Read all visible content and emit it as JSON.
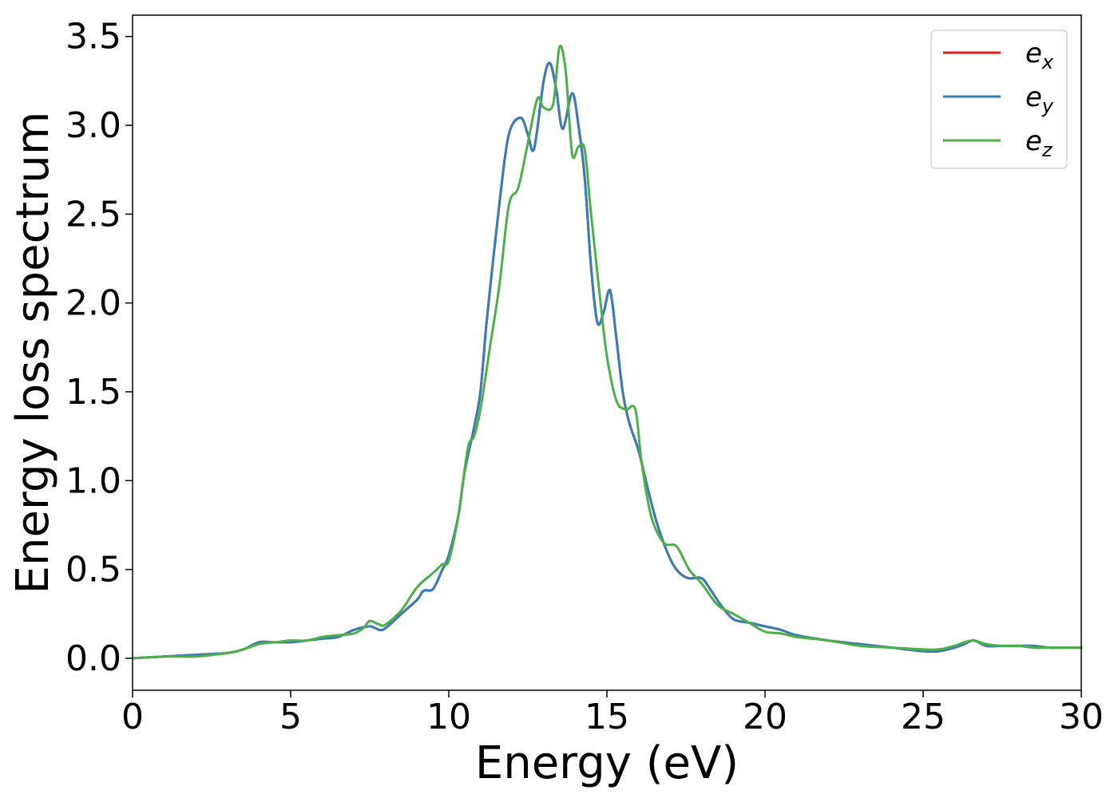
{
  "chart_data": {
    "type": "line",
    "xlabel": "Energy (eV)",
    "ylabel": "Energy loss spectrum",
    "xlim": [
      0,
      30
    ],
    "ylim": [
      -0.18,
      3.62
    ],
    "xticks": [
      "0",
      "5",
      "10",
      "15",
      "20",
      "25",
      "30"
    ],
    "yticks": [
      "0.0",
      "0.5",
      "1.0",
      "1.5",
      "2.0",
      "2.5",
      "3.0",
      "3.5"
    ],
    "grid": false,
    "legend_position": "top-right",
    "series": [
      {
        "base": "e",
        "sub": "x",
        "color": "#e41a1c",
        "x": [
          0,
          1,
          2,
          3,
          3.5,
          4,
          4.5,
          5,
          5.5,
          6,
          6.5,
          7,
          7.5,
          7.8,
          8,
          8.5,
          9,
          9.2,
          9.5,
          9.8,
          10,
          10.3,
          10.5,
          10.8,
          11,
          11.2,
          11.5,
          11.8,
          12,
          12.3,
          12.5,
          12.7,
          13,
          13.2,
          13.4,
          13.6,
          13.9,
          14.1,
          14.3,
          14.5,
          14.7,
          14.9,
          15.1,
          15.3,
          15.5,
          15.7,
          16,
          16.3,
          16.6,
          17,
          17.3,
          17.6,
          18,
          18.3,
          18.6,
          19,
          19.5,
          20,
          20.5,
          21,
          22,
          23,
          24,
          25,
          25.5,
          26,
          26.3,
          26.6,
          27,
          27.5,
          28,
          28.5,
          29,
          29.5,
          30
        ],
        "y": [
          0,
          0.01,
          0.02,
          0.03,
          0.05,
          0.09,
          0.09,
          0.09,
          0.1,
          0.11,
          0.12,
          0.16,
          0.18,
          0.16,
          0.17,
          0.25,
          0.33,
          0.38,
          0.39,
          0.5,
          0.58,
          0.8,
          1.05,
          1.3,
          1.5,
          1.9,
          2.4,
          2.85,
          3.0,
          3.04,
          2.95,
          2.87,
          3.25,
          3.35,
          3.2,
          2.98,
          3.18,
          3.0,
          2.7,
          2.2,
          1.89,
          1.95,
          2.07,
          1.8,
          1.5,
          1.33,
          1.17,
          0.95,
          0.75,
          0.56,
          0.48,
          0.45,
          0.45,
          0.38,
          0.3,
          0.22,
          0.2,
          0.18,
          0.16,
          0.13,
          0.1,
          0.08,
          0.06,
          0.04,
          0.04,
          0.06,
          0.08,
          0.1,
          0.07,
          0.07,
          0.07,
          0.07,
          0.06,
          0.06,
          0.06
        ]
      },
      {
        "base": "e",
        "sub": "y",
        "color": "#377eb8",
        "x": [
          0,
          1,
          2,
          3,
          3.5,
          4,
          4.5,
          5,
          5.5,
          6,
          6.5,
          7,
          7.5,
          7.8,
          8,
          8.5,
          9,
          9.2,
          9.5,
          9.8,
          10,
          10.3,
          10.5,
          10.8,
          11,
          11.2,
          11.5,
          11.8,
          12,
          12.3,
          12.5,
          12.7,
          13,
          13.2,
          13.4,
          13.6,
          13.9,
          14.1,
          14.3,
          14.5,
          14.7,
          14.9,
          15.1,
          15.3,
          15.5,
          15.7,
          16,
          16.3,
          16.6,
          17,
          17.3,
          17.6,
          18,
          18.3,
          18.6,
          19,
          19.5,
          20,
          20.5,
          21,
          22,
          23,
          24,
          25,
          25.5,
          26,
          26.3,
          26.6,
          27,
          27.5,
          28,
          28.5,
          29,
          29.5,
          30
        ],
        "y": [
          0,
          0.01,
          0.02,
          0.03,
          0.05,
          0.09,
          0.09,
          0.09,
          0.1,
          0.11,
          0.12,
          0.16,
          0.18,
          0.16,
          0.17,
          0.25,
          0.33,
          0.38,
          0.39,
          0.5,
          0.58,
          0.8,
          1.05,
          1.3,
          1.5,
          1.9,
          2.4,
          2.85,
          3.0,
          3.04,
          2.95,
          2.87,
          3.25,
          3.35,
          3.2,
          2.98,
          3.18,
          3.0,
          2.7,
          2.2,
          1.89,
          1.95,
          2.07,
          1.8,
          1.5,
          1.33,
          1.17,
          0.95,
          0.75,
          0.56,
          0.48,
          0.45,
          0.45,
          0.38,
          0.3,
          0.22,
          0.2,
          0.18,
          0.16,
          0.13,
          0.1,
          0.08,
          0.06,
          0.04,
          0.04,
          0.06,
          0.08,
          0.1,
          0.07,
          0.07,
          0.07,
          0.07,
          0.06,
          0.06,
          0.06
        ]
      },
      {
        "base": "e",
        "sub": "z",
        "color": "#4daf4a",
        "x": [
          0,
          1,
          2,
          3,
          3.5,
          4,
          4.5,
          5,
          5.5,
          6,
          6.5,
          7,
          7.3,
          7.5,
          7.8,
          8,
          8.5,
          9,
          9.5,
          9.8,
          10,
          10.3,
          10.6,
          10.8,
          11,
          11.3,
          11.6,
          11.9,
          12.2,
          12.5,
          12.8,
          13,
          13.3,
          13.5,
          13.7,
          13.9,
          14.1,
          14.3,
          14.5,
          14.8,
          15,
          15.3,
          15.6,
          15.9,
          16.1,
          16.4,
          16.8,
          17.2,
          17.6,
          18,
          18.5,
          19,
          19.5,
          20,
          20.5,
          21,
          22,
          23,
          24,
          25,
          25.5,
          26,
          26.3,
          26.6,
          27,
          27.5,
          28,
          28.5,
          29,
          29.5,
          30
        ],
        "y": [
          0,
          0.01,
          0.01,
          0.03,
          0.05,
          0.08,
          0.09,
          0.1,
          0.1,
          0.12,
          0.13,
          0.14,
          0.17,
          0.21,
          0.19,
          0.19,
          0.27,
          0.4,
          0.48,
          0.53,
          0.55,
          0.8,
          1.18,
          1.25,
          1.4,
          1.75,
          2.1,
          2.55,
          2.65,
          2.9,
          3.15,
          3.1,
          3.12,
          3.44,
          3.3,
          2.84,
          2.88,
          2.86,
          2.5,
          2.0,
          1.7,
          1.45,
          1.4,
          1.4,
          1.1,
          0.8,
          0.65,
          0.63,
          0.5,
          0.42,
          0.3,
          0.25,
          0.2,
          0.15,
          0.14,
          0.12,
          0.1,
          0.07,
          0.06,
          0.05,
          0.05,
          0.07,
          0.09,
          0.1,
          0.08,
          0.07,
          0.07,
          0.06,
          0.06,
          0.06,
          0.06
        ]
      }
    ]
  }
}
